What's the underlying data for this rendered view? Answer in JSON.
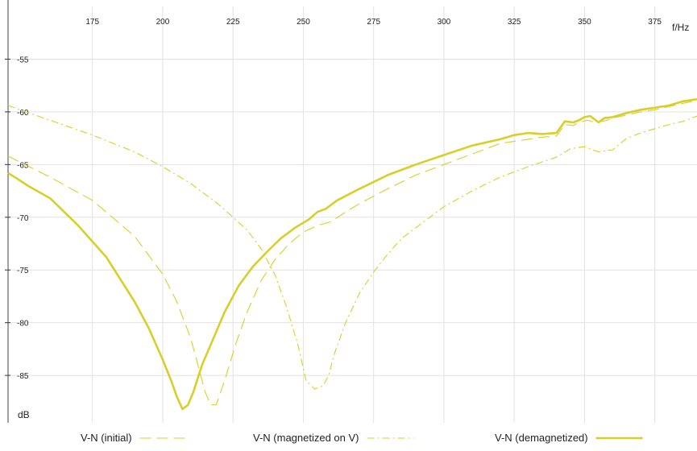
{
  "chart_data": {
    "type": "line",
    "title": "",
    "xlabel": "f/Hz",
    "ylabel": "dB",
    "xlim": [
      145,
      390
    ],
    "ylim": [
      -89.5,
      -50
    ],
    "x_ticks": [
      175,
      200,
      225,
      250,
      275,
      300,
      325,
      350,
      375
    ],
    "y_ticks": [
      -55,
      -60,
      -65,
      -70,
      -75,
      -80,
      -85
    ],
    "grid": true,
    "legend_position": "bottom",
    "series": [
      {
        "name": "V-N (initial)",
        "style": "dashed",
        "color": "#d8cf2a",
        "points": [
          [
            145,
            -64.2
          ],
          [
            160,
            -66.2
          ],
          [
            175,
            -68.4
          ],
          [
            190,
            -71.8
          ],
          [
            200,
            -75.4
          ],
          [
            205,
            -78.0
          ],
          [
            210,
            -81.5
          ],
          [
            213,
            -84.5
          ],
          [
            215,
            -86.5
          ],
          [
            217,
            -87.8
          ],
          [
            219,
            -87.8
          ],
          [
            222,
            -85.5
          ],
          [
            226,
            -82.0
          ],
          [
            230,
            -79.0
          ],
          [
            235,
            -76.0
          ],
          [
            240,
            -74.0
          ],
          [
            245,
            -72.5
          ],
          [
            250,
            -71.4
          ],
          [
            255,
            -70.8
          ],
          [
            260,
            -70.4
          ],
          [
            265,
            -69.5
          ],
          [
            270,
            -68.7
          ],
          [
            275,
            -68.0
          ],
          [
            280,
            -67.3
          ],
          [
            290,
            -66.0
          ],
          [
            300,
            -65.0
          ],
          [
            310,
            -64.0
          ],
          [
            320,
            -63.0
          ],
          [
            325,
            -62.8
          ],
          [
            330,
            -62.6
          ],
          [
            335,
            -62.4
          ],
          [
            340,
            -62.3
          ],
          [
            343,
            -61.2
          ],
          [
            346,
            -61.3
          ],
          [
            348,
            -61.0
          ],
          [
            351,
            -60.8
          ],
          [
            354,
            -61.0
          ],
          [
            356,
            -60.9
          ],
          [
            358,
            -60.8
          ],
          [
            360,
            -60.6
          ],
          [
            365,
            -60.3
          ],
          [
            370,
            -60.0
          ],
          [
            375,
            -59.8
          ],
          [
            380,
            -59.5
          ],
          [
            385,
            -59.2
          ],
          [
            390,
            -58.9
          ]
        ]
      },
      {
        "name": "V-N (magnetized on V)",
        "style": "dashdot",
        "color": "#d8cf2a",
        "points": [
          [
            145,
            -59.4
          ],
          [
            160,
            -60.8
          ],
          [
            175,
            -62.2
          ],
          [
            190,
            -63.8
          ],
          [
            200,
            -65.2
          ],
          [
            210,
            -66.8
          ],
          [
            220,
            -68.8
          ],
          [
            230,
            -71.2
          ],
          [
            235,
            -73.0
          ],
          [
            240,
            -75.5
          ],
          [
            244,
            -78.5
          ],
          [
            248,
            -82.0
          ],
          [
            251,
            -85.5
          ],
          [
            254,
            -86.3
          ],
          [
            257,
            -86.0
          ],
          [
            259,
            -85.0
          ],
          [
            261,
            -83.0
          ],
          [
            265,
            -80.0
          ],
          [
            270,
            -77.2
          ],
          [
            275,
            -75.2
          ],
          [
            280,
            -73.5
          ],
          [
            285,
            -72.0
          ],
          [
            290,
            -71.0
          ],
          [
            300,
            -69.0
          ],
          [
            310,
            -67.5
          ],
          [
            320,
            -66.2
          ],
          [
            330,
            -65.2
          ],
          [
            340,
            -64.3
          ],
          [
            345,
            -63.5
          ],
          [
            350,
            -63.3
          ],
          [
            355,
            -63.8
          ],
          [
            360,
            -63.6
          ],
          [
            365,
            -62.5
          ],
          [
            370,
            -62.0
          ],
          [
            375,
            -61.6
          ],
          [
            380,
            -61.2
          ],
          [
            385,
            -60.9
          ],
          [
            390,
            -60.4
          ]
        ]
      },
      {
        "name": "V-N (demagnetized)",
        "style": "solid",
        "color": "#d8cf2a",
        "points": [
          [
            145,
            -65.8
          ],
          [
            148,
            -66.3
          ],
          [
            152,
            -67.0
          ],
          [
            160,
            -68.2
          ],
          [
            170,
            -70.8
          ],
          [
            180,
            -73.8
          ],
          [
            190,
            -78.0
          ],
          [
            195,
            -80.5
          ],
          [
            200,
            -83.5
          ],
          [
            203,
            -85.5
          ],
          [
            205,
            -87.0
          ],
          [
            207,
            -88.2
          ],
          [
            209,
            -87.8
          ],
          [
            211,
            -86.5
          ],
          [
            214,
            -84.0
          ],
          [
            218,
            -81.5
          ],
          [
            222,
            -79.0
          ],
          [
            227,
            -76.5
          ],
          [
            232,
            -74.7
          ],
          [
            237,
            -73.3
          ],
          [
            242,
            -72.0
          ],
          [
            247,
            -71.0
          ],
          [
            252,
            -70.2
          ],
          [
            255,
            -69.5
          ],
          [
            258,
            -69.2
          ],
          [
            262,
            -68.4
          ],
          [
            270,
            -67.3
          ],
          [
            280,
            -66.0
          ],
          [
            290,
            -65.0
          ],
          [
            300,
            -64.1
          ],
          [
            310,
            -63.2
          ],
          [
            320,
            -62.6
          ],
          [
            325,
            -62.2
          ],
          [
            330,
            -62.0
          ],
          [
            335,
            -62.1
          ],
          [
            340,
            -62.0
          ],
          [
            343,
            -60.9
          ],
          [
            346,
            -61.0
          ],
          [
            348,
            -60.8
          ],
          [
            350,
            -60.5
          ],
          [
            352,
            -60.4
          ],
          [
            355,
            -61.0
          ],
          [
            357,
            -60.6
          ],
          [
            360,
            -60.5
          ],
          [
            365,
            -60.1
          ],
          [
            370,
            -59.8
          ],
          [
            375,
            -59.6
          ],
          [
            380,
            -59.4
          ],
          [
            385,
            -59.0
          ],
          [
            390,
            -58.8
          ]
        ]
      }
    ]
  }
}
